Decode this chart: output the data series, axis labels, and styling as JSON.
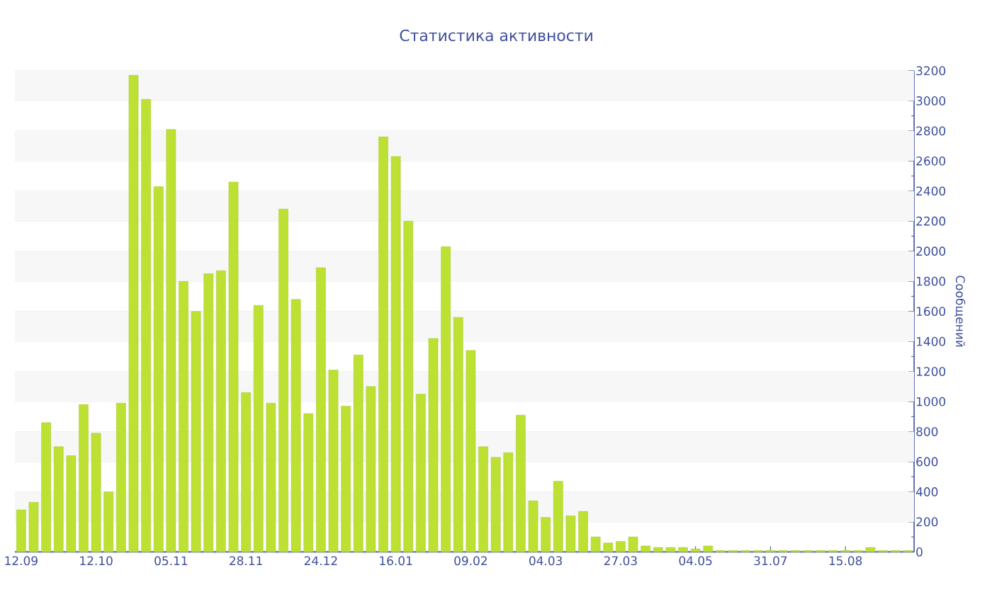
{
  "chart_data": {
    "type": "bar",
    "title": "Статистика активности",
    "ylabel": "Сообщений",
    "categories": [
      "12.09",
      null,
      null,
      null,
      null,
      null,
      "12.10",
      null,
      null,
      null,
      null,
      null,
      "05.11",
      null,
      null,
      null,
      null,
      null,
      "28.11",
      null,
      null,
      null,
      null,
      null,
      "24.12",
      null,
      null,
      null,
      null,
      null,
      "16.01",
      null,
      null,
      null,
      null,
      null,
      "09.02",
      null,
      null,
      null,
      null,
      null,
      "04.03",
      null,
      null,
      null,
      null,
      null,
      "27.03",
      null,
      null,
      null,
      null,
      null,
      "04.05",
      null,
      null,
      null,
      null,
      null,
      "31.07",
      null,
      null,
      null,
      null,
      null,
      "15.08",
      null,
      null,
      null,
      null,
      null
    ],
    "values": [
      280,
      330,
      860,
      700,
      640,
      980,
      790,
      400,
      990,
      3170,
      3010,
      2430,
      2810,
      1800,
      1600,
      1850,
      1870,
      2460,
      1060,
      1640,
      990,
      2280,
      1680,
      920,
      1890,
      1210,
      970,
      1310,
      1100,
      2760,
      2630,
      2200,
      1050,
      1420,
      2030,
      1560,
      1340,
      700,
      630,
      660,
      910,
      340,
      230,
      470,
      240,
      270,
      100,
      60,
      70,
      100,
      40,
      30,
      30,
      30,
      20,
      40,
      10,
      10,
      10,
      10,
      10,
      10,
      10,
      10,
      10,
      10,
      10,
      10,
      30,
      10,
      10,
      10
    ],
    "color": "#bce132",
    "ylim": [
      0,
      3200
    ],
    "yticks": [
      0,
      200,
      400,
      600,
      800,
      1000,
      1200,
      1400,
      1600,
      1800,
      2000,
      2200,
      2400,
      2600,
      2800,
      3000,
      3200
    ],
    "grid": "y"
  }
}
